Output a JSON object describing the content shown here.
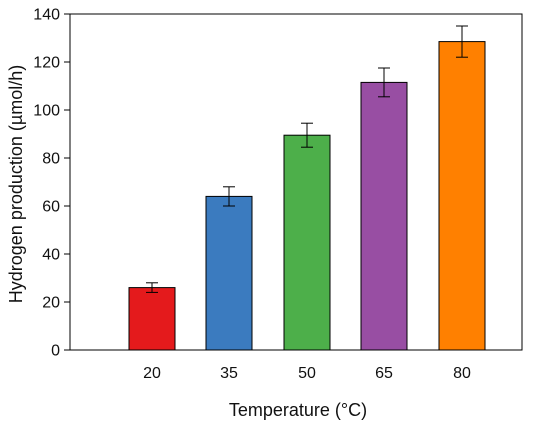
{
  "chart_data": {
    "type": "bar",
    "title": "",
    "xlabel": "Temperature (°C)",
    "ylabel": "Hydrogen production (µmol/h)",
    "categories": [
      "20",
      "35",
      "50",
      "65",
      "80"
    ],
    "values": [
      26,
      64,
      89.5,
      111.5,
      128.5
    ],
    "errors": [
      2,
      4,
      5,
      6,
      6.5
    ],
    "ylim": [
      0,
      140
    ],
    "yticks": [
      "0",
      "20",
      "40",
      "60",
      "80",
      "100",
      "120",
      "140"
    ],
    "colors": [
      "#e41a1c",
      "#3b7bbf",
      "#4daf4a",
      "#984ea3",
      "#ff8000"
    ],
    "grid": false,
    "legend": "none"
  }
}
